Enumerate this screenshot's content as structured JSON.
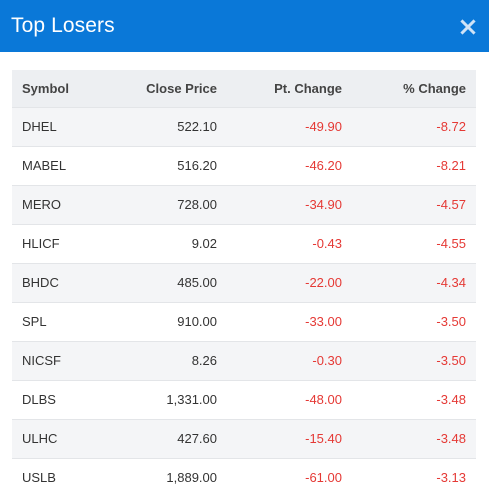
{
  "modal": {
    "title": "Top Losers",
    "close_icon": "close-icon",
    "accent_color": "#0a78d8",
    "negative_color": "#e53935"
  },
  "table": {
    "headers": [
      "Symbol",
      "Close Price",
      "Pt. Change",
      "% Change"
    ],
    "rows": [
      {
        "symbol": "DHEL",
        "close": "522.10",
        "pt": "-49.90",
        "pct": "-8.72"
      },
      {
        "symbol": "MABEL",
        "close": "516.20",
        "pt": "-46.20",
        "pct": "-8.21"
      },
      {
        "symbol": "MERO",
        "close": "728.00",
        "pt": "-34.90",
        "pct": "-4.57"
      },
      {
        "symbol": "HLICF",
        "close": "9.02",
        "pt": "-0.43",
        "pct": "-4.55"
      },
      {
        "symbol": "BHDC",
        "close": "485.00",
        "pt": "-22.00",
        "pct": "-4.34"
      },
      {
        "symbol": "SPL",
        "close": "910.00",
        "pt": "-33.00",
        "pct": "-3.50"
      },
      {
        "symbol": "NICSF",
        "close": "8.26",
        "pt": "-0.30",
        "pct": "-3.50"
      },
      {
        "symbol": "DLBS",
        "close": "1,331.00",
        "pt": "-48.00",
        "pct": "-3.48"
      },
      {
        "symbol": "ULHC",
        "close": "427.60",
        "pt": "-15.40",
        "pct": "-3.48"
      },
      {
        "symbol": "USLB",
        "close": "1,889.00",
        "pt": "-61.00",
        "pct": "-3.13"
      }
    ]
  }
}
